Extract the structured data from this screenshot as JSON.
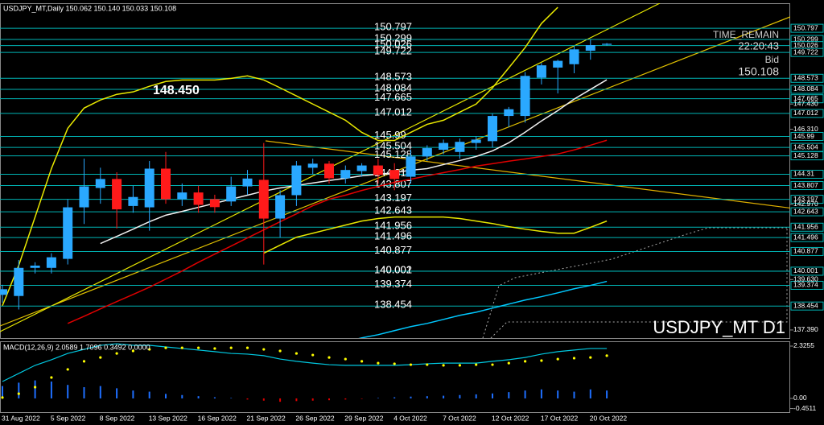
{
  "header": {
    "title": "USDJPY_MT,Daily  150.062 150.140 150.033 150.108"
  },
  "chart_data": {
    "type": "candlestick",
    "categories": [
      "31 Aug 2022",
      null,
      null,
      "5 Sep 2022",
      null,
      null,
      "8 Sep 2022",
      null,
      null,
      "13 Sep 2022",
      null,
      null,
      "16 Sep 2022",
      null,
      null,
      "21 Sep 2022",
      null,
      null,
      "26 Sep 2022",
      null,
      null,
      "29 Sep 2022",
      null,
      null,
      "4 Oct 2022",
      null,
      null,
      "7 Oct 2022",
      null,
      null,
      "12 Oct 2022",
      null,
      null,
      "17 Oct 2022",
      null,
      null,
      "20 Oct 2022",
      null
    ],
    "open": [
      138.95,
      138.9,
      140.15,
      140.15,
      140.55,
      142.84,
      143.7,
      144.1,
      142.9,
      142.84,
      144.56,
      143.2,
      143.5,
      143.2,
      143.1,
      143.77,
      144.06,
      142.34,
      143.38,
      144.6,
      144.78,
      144.13,
      144.45,
      144.7,
      144.5,
      144.2,
      145.1,
      145.4,
      145.3,
      145.7,
      145.78,
      146.9,
      146.9,
      148.6,
      149.05,
      149.2,
      149.8,
      150.062
    ],
    "high": [
      139.4,
      140.5,
      140.4,
      140.8,
      143.2,
      145.0,
      144.6,
      144.4,
      143.8,
      144.9,
      145.3,
      143.9,
      143.8,
      143.4,
      144.2,
      144.5,
      145.7,
      143.6,
      144.9,
      145.0,
      144.9,
      144.7,
      144.8,
      145.0,
      144.8,
      145.4,
      145.6,
      145.85,
      145.9,
      146.0,
      147.0,
      147.3,
      148.85,
      149.25,
      149.4,
      150.0,
      150.3,
      150.14
    ],
    "low": [
      138.6,
      138.3,
      139.9,
      139.9,
      140.3,
      142.1,
      143.0,
      141.9,
      142.6,
      141.8,
      143.0,
      142.9,
      142.6,
      142.6,
      142.9,
      143.4,
      140.3,
      141.5,
      142.9,
      144.3,
      143.9,
      143.9,
      144.2,
      143.9,
      143.6,
      143.9,
      144.9,
      145.2,
      145.0,
      145.4,
      145.5,
      146.4,
      146.6,
      148.3,
      147.9,
      148.8,
      149.4,
      150.033
    ],
    "close": [
      139.2,
      140.15,
      140.25,
      140.62,
      142.84,
      143.77,
      144.1,
      142.75,
      143.3,
      144.56,
      143.2,
      143.5,
      142.95,
      142.85,
      143.77,
      144.12,
      142.34,
      143.38,
      144.7,
      144.78,
      144.13,
      144.5,
      144.7,
      144.28,
      144.1,
      145.1,
      145.47,
      145.7,
      145.75,
      145.85,
      146.9,
      147.2,
      148.68,
      149.15,
      149.35,
      149.86,
      150.05,
      150.108
    ],
    "up_color": "#2aa8ff",
    "down_color": "#ff1a1a",
    "ylim": [
      137.03,
      151.91
    ],
    "yticks": [
      {
        "value": 147.43,
        "label": "147.430"
      },
      {
        "value": 146.31,
        "label": "146.310"
      },
      {
        "value": 142.97,
        "label": "142.970"
      },
      {
        "value": 139.63,
        "label": "139.630"
      },
      {
        "value": 137.39,
        "label": "137.390"
      }
    ],
    "levels": [
      150.797,
      150.299,
      150.026,
      149.722,
      148.573,
      148.084,
      147.665,
      147.012,
      145.99,
      145.504,
      145.128,
      144.31,
      143.807,
      143.197,
      142.643,
      141.956,
      141.496,
      140.877,
      140.002,
      140.001,
      139.374,
      138.454
    ],
    "level_color": "#00b4b4",
    "overlays": [
      {
        "color": "#e8e800",
        "values": [
          138.47,
          140.26,
          142.41,
          144.56,
          146.35,
          147.25,
          147.61,
          147.86,
          147.97,
          148.22,
          148.43,
          148.5,
          148.5,
          148.5,
          148.57,
          148.68,
          148.5,
          148.15,
          147.79,
          147.43,
          147.07,
          146.71,
          146.17,
          145.81,
          145.81,
          146.17,
          146.53,
          146.71,
          147.07,
          147.43,
          148.15,
          149.04,
          149.94,
          151.01,
          151.73,
          null,
          null,
          null
        ]
      },
      {
        "color": "#e8e800",
        "values": [
          null,
          null,
          null,
          null,
          null,
          null,
          null,
          null,
          null,
          null,
          null,
          null,
          null,
          null,
          null,
          null,
          140.8,
          141.16,
          141.51,
          141.69,
          141.87,
          142.05,
          142.23,
          142.34,
          142.41,
          142.41,
          142.41,
          142.41,
          142.34,
          142.23,
          142.12,
          141.98,
          141.87,
          141.77,
          141.69,
          141.69,
          141.95,
          142.23
        ]
      },
      {
        "color": "#e00000",
        "values": [
          null,
          null,
          null,
          null,
          137.68,
          138.0,
          138.33,
          138.65,
          138.97,
          139.29,
          139.65,
          140.01,
          140.4,
          140.76,
          141.12,
          141.48,
          141.84,
          142.2,
          142.55,
          142.91,
          143.2,
          143.38,
          143.59,
          143.77,
          143.95,
          144.09,
          144.24,
          144.38,
          144.52,
          144.67,
          144.78,
          144.89,
          144.99,
          145.1,
          145.21,
          145.39,
          145.6,
          145.82
        ]
      },
      {
        "color": "#00c8ff",
        "values": [
          null,
          null,
          null,
          null,
          null,
          null,
          null,
          null,
          null,
          null,
          null,
          null,
          null,
          null,
          null,
          null,
          null,
          null,
          null,
          null,
          null,
          136.86,
          137.04,
          137.18,
          137.36,
          137.54,
          137.68,
          137.86,
          138.04,
          138.18,
          138.36,
          138.54,
          138.72,
          138.87,
          139.04,
          139.22,
          139.37,
          139.55
        ]
      },
      {
        "color": "#f0f0f0",
        "values": [
          null,
          null,
          null,
          null,
          null,
          null,
          141.23,
          141.55,
          141.87,
          142.2,
          142.49,
          142.66,
          142.84,
          143.02,
          143.2,
          143.38,
          143.56,
          143.7,
          143.81,
          143.92,
          144.03,
          144.13,
          144.24,
          144.31,
          144.38,
          144.49,
          144.56,
          144.74,
          144.92,
          145.1,
          145.35,
          145.71,
          146.18,
          146.68,
          147.14,
          147.65,
          148.08,
          148.51
        ]
      }
    ],
    "annotation": "148.450",
    "watermark": "USDJPY_MT D1",
    "timer": {
      "label": "TIME_REMAIN",
      "value": "22:20:43"
    },
    "bid": {
      "label": "Bid",
      "value": "150.108"
    },
    "macd": {
      "title": "MACD(12,26,9) 2.0589 1.7096 0.3492 0.0000",
      "ylim": [
        -0.61,
        2.54
      ],
      "yticks": [
        2.3255,
        {
          "value": 0,
          "label": "0.00"
        },
        -0.4511
      ],
      "bar_color": "#1e6fff",
      "neg_color": "#e00000",
      "line_color": "#00c8e0",
      "dot_color": "#ffff00",
      "bars": [
        0.55,
        0.7,
        0.8,
        0.75,
        0.6,
        0.5,
        0.55,
        0.45,
        0.35,
        0.3,
        0.2,
        0.15,
        0.1,
        0.05,
        0.02,
        -0.05,
        -0.1,
        -0.15,
        -0.12,
        -0.1,
        -0.08,
        -0.05,
        -0.02,
        0.02,
        0.05,
        0.08,
        0.1,
        0.12,
        0.15,
        0.18,
        0.22,
        0.28,
        0.35,
        0.4,
        0.35,
        0.3,
        0.4,
        0.35
      ],
      "line": [
        0.75,
        1.11,
        1.47,
        1.72,
        2.0,
        2.18,
        2.36,
        2.43,
        2.36,
        2.36,
        2.29,
        2.22,
        2.15,
        2.08,
        2.0,
        1.97,
        1.9,
        1.75,
        1.65,
        1.57,
        1.5,
        1.47,
        1.47,
        1.47,
        1.47,
        1.5,
        1.54,
        1.57,
        1.57,
        1.57,
        1.65,
        1.72,
        1.82,
        1.97,
        2.08,
        2.15,
        2.22,
        2.22
      ],
      "dots": [
        0.04,
        0.21,
        0.5,
        0.93,
        1.29,
        1.65,
        1.82,
        2.0,
        2.11,
        2.18,
        2.25,
        2.25,
        2.25,
        2.22,
        2.25,
        2.25,
        2.18,
        2.11,
        2.0,
        1.93,
        1.82,
        1.75,
        1.65,
        1.57,
        1.54,
        1.5,
        1.5,
        1.47,
        1.47,
        1.5,
        1.5,
        1.57,
        1.65,
        1.68,
        1.75,
        1.79,
        1.82,
        1.9
      ]
    }
  }
}
